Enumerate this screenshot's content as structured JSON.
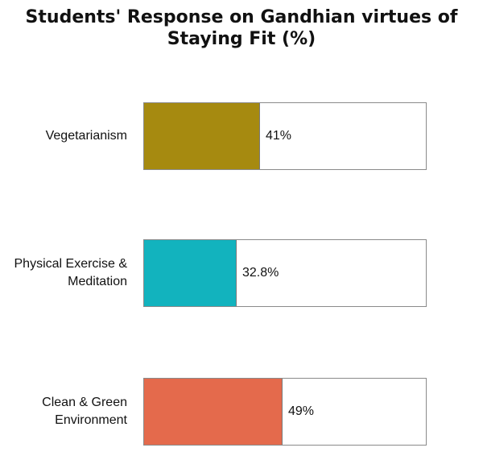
{
  "chart_data": {
    "type": "bar",
    "orientation": "horizontal",
    "title_lines": [
      "Students' Response on Gandhian virtues of",
      "Staying Fit (%)"
    ],
    "categories": [
      [
        "Vegetarianism"
      ],
      [
        "Physical Exercise &",
        "Meditation"
      ],
      [
        "Clean & Green",
        "Environment"
      ]
    ],
    "values": [
      41,
      32.8,
      49
    ],
    "value_labels": [
      "41%",
      "32.8%",
      "49%"
    ],
    "colors": [
      "#a68a10",
      "#12b3be",
      "#e46a4c"
    ],
    "xlim": [
      0,
      100
    ],
    "unit": "%",
    "grid": false,
    "legend": "none"
  }
}
